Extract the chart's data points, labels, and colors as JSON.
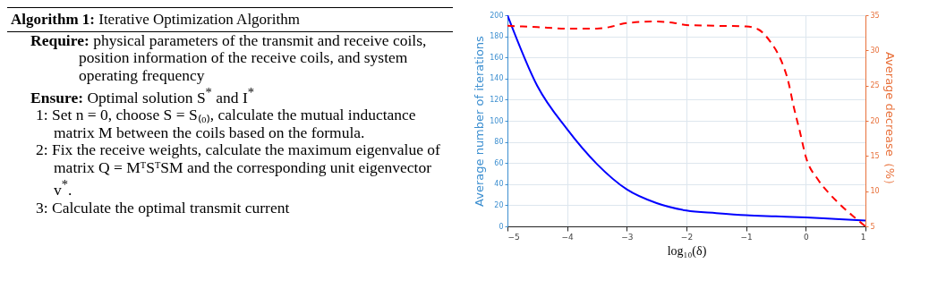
{
  "chart_data": [
    {
      "type": "other",
      "title": "Algorithm 1: Iterative Optimization Algorithm",
      "annotations": [
        "Require: physical parameters of the transmit and receive coils, position information of the receive coils, and system operating frequency",
        "Ensure: Optimal solution S$^{*}$ and I$^{*}$",
        "1: Set n = 0, choose S = S₍₀₎, calculate the mutual inductance matrix M between the coils based on the formula.",
        "2: Fix the receive weights, calculate the maximum eigenvalue of matrix Q = MᵀSᵀSM and the corresponding unit eigenvector v$^{*}$.",
        "3: Calculate the optimal transmit current"
      ]
    },
    {
      "type": "line",
      "xlabel": "log₁₀(δ)",
      "ylabel": "Average number of iterations",
      "y2label": "Average decrease（%）",
      "xlim": [
        -5,
        1
      ],
      "xticks": [
        -5,
        -4,
        -3,
        -2,
        -1,
        0,
        1
      ],
      "ylim": [
        0,
        200
      ],
      "yticks": [
        0,
        20,
        40,
        60,
        80,
        100,
        120,
        140,
        160,
        180,
        200
      ],
      "y2lim": [
        5,
        35
      ],
      "y2ticks": [
        5,
        10,
        15,
        20,
        25,
        30,
        35
      ],
      "grid": true,
      "series": [
        {
          "color": "#0000ff",
          "line_style": "solid",
          "x": [
            -5,
            -4.5,
            -4,
            -3.5,
            -3,
            -2.5,
            -2,
            -1.5,
            -1,
            -0.5,
            0,
            0.5,
            1
          ],
          "values": [
            200,
            133,
            92,
            59,
            35,
            22,
            15,
            12.5,
            10.5,
            9.5,
            8.5,
            7,
            5.6
          ]
        },
        {
          "color": "#ff0000",
          "line_style": "dashed",
          "axis": "y2",
          "x": [
            -5,
            -4.5,
            -4,
            -3.5,
            -3.3,
            -3,
            -2.5,
            -2.2,
            -2,
            -1.5,
            -1,
            -0.8,
            -0.6,
            -0.4,
            -0.3,
            -0.2,
            -0.1,
            0,
            0.2,
            0.4,
            0.6,
            0.8,
            1
          ],
          "values": [
            33.5,
            33.3,
            33.1,
            33.1,
            33.3,
            33.9,
            34.1,
            33.9,
            33.6,
            33.5,
            33.4,
            33.0,
            31.3,
            28.3,
            25.8,
            21.9,
            18.5,
            14.9,
            11.7,
            9.6,
            7.9,
            6.4,
            5.0
          ]
        }
      ]
    }
  ]
}
